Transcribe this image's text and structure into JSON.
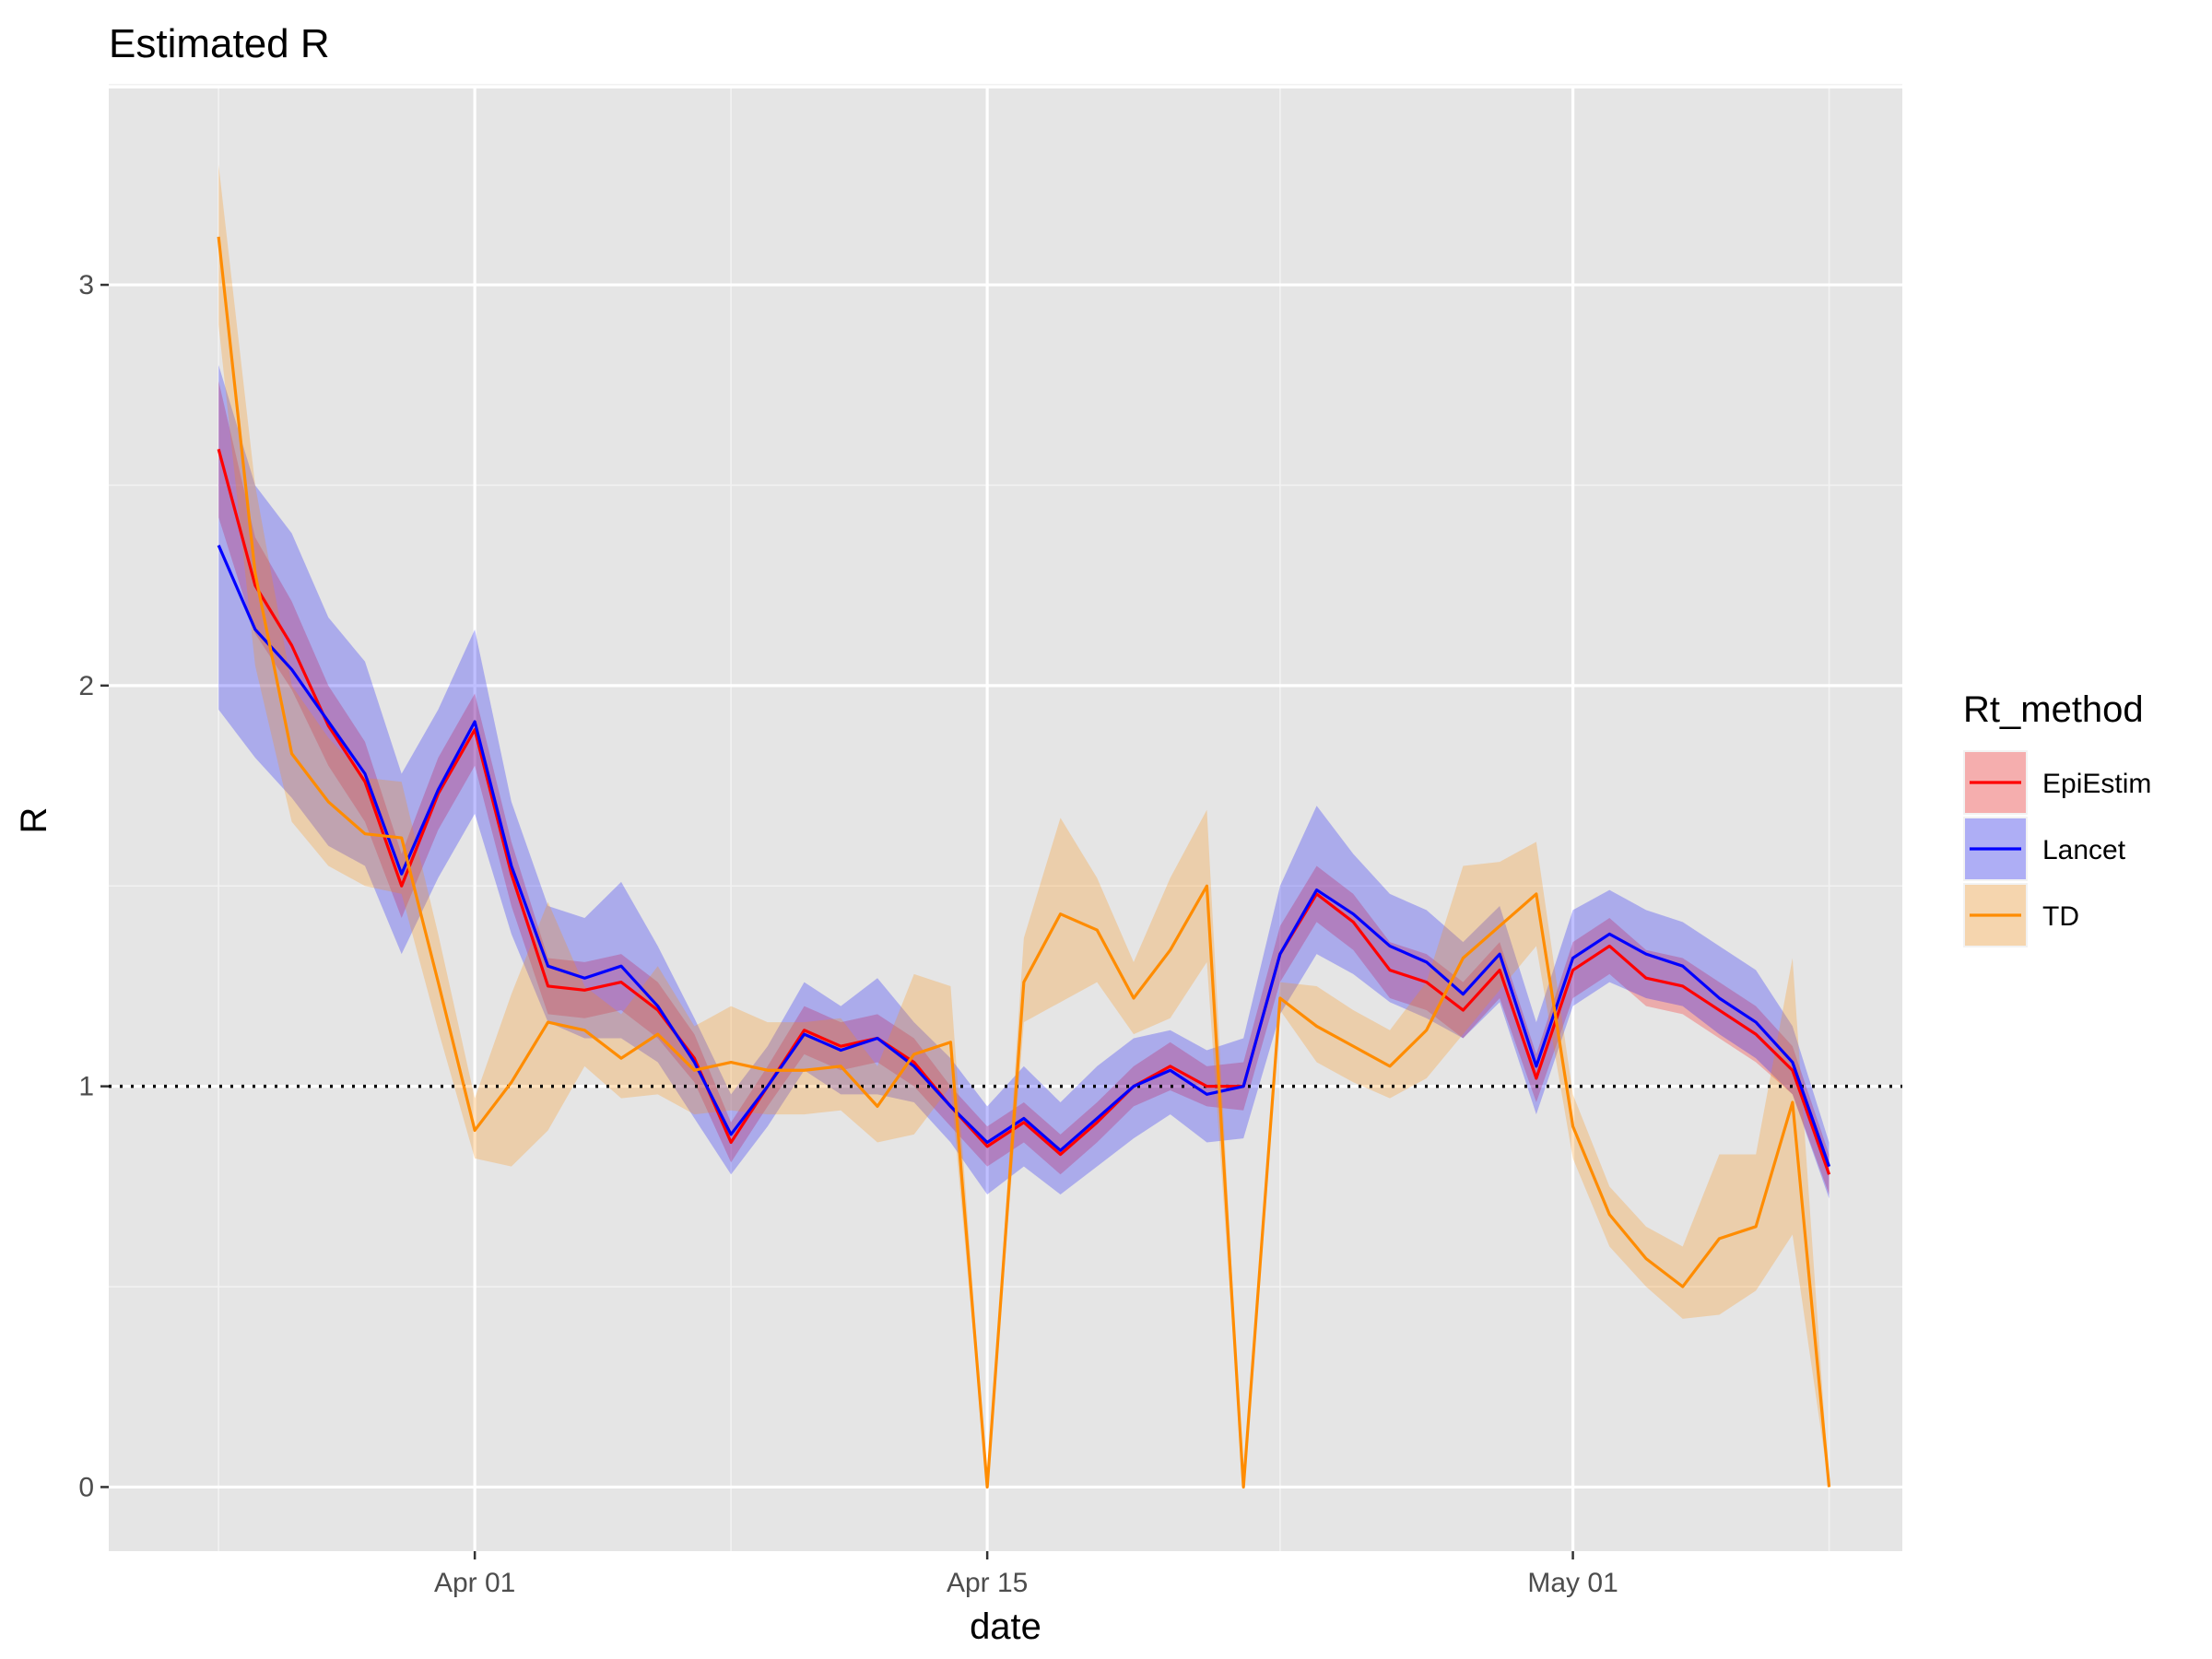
{
  "chart_data": {
    "type": "line",
    "title": "Estimated R",
    "xlabel": "date",
    "ylabel": "R",
    "x_tick_labels": [
      "Apr 01",
      "Apr 15",
      "May 01"
    ],
    "y_tick_labels": [
      "0",
      "1",
      "2",
      "3"
    ],
    "xlim": [
      "2020-03-22",
      "2020-05-10"
    ],
    "ylim": [
      -0.16,
      3.49
    ],
    "reference_line": {
      "y": 1,
      "style": "dotted"
    },
    "grid": true,
    "legend": {
      "title": "Rt_method",
      "position": "right"
    },
    "x": [
      "2020-03-25",
      "2020-03-26",
      "2020-03-27",
      "2020-03-28",
      "2020-03-29",
      "2020-03-30",
      "2020-03-31",
      "2020-04-01",
      "2020-04-02",
      "2020-04-03",
      "2020-04-04",
      "2020-04-05",
      "2020-04-06",
      "2020-04-07",
      "2020-04-08",
      "2020-04-09",
      "2020-04-10",
      "2020-04-11",
      "2020-04-12",
      "2020-04-13",
      "2020-04-14",
      "2020-04-15",
      "2020-04-16",
      "2020-04-17",
      "2020-04-18",
      "2020-04-19",
      "2020-04-20",
      "2020-04-21",
      "2020-04-22",
      "2020-04-23",
      "2020-04-24",
      "2020-04-25",
      "2020-04-26",
      "2020-04-27",
      "2020-04-28",
      "2020-04-29",
      "2020-04-30",
      "2020-05-01",
      "2020-05-02",
      "2020-05-03",
      "2020-05-04",
      "2020-05-05",
      "2020-05-06",
      "2020-05-07",
      "2020-05-08"
    ],
    "series": [
      {
        "name": "EpiEstim",
        "color": "#ff0000",
        "values": [
          2.59,
          2.25,
          2.1,
          1.9,
          1.76,
          1.5,
          1.73,
          1.89,
          1.53,
          1.25,
          1.24,
          1.26,
          1.19,
          1.07,
          0.86,
          1.0,
          1.14,
          1.1,
          1.12,
          1.06,
          0.95,
          0.85,
          0.91,
          0.83,
          0.91,
          1.0,
          1.05,
          1.0,
          1.0,
          1.33,
          1.48,
          1.41,
          1.29,
          1.26,
          1.19,
          1.29,
          1.02,
          1.29,
          1.35,
          1.27,
          1.25,
          1.19,
          1.13,
          1.04,
          0.78
        ],
        "lower": [
          2.42,
          2.13,
          1.99,
          1.8,
          1.66,
          1.42,
          1.64,
          1.8,
          1.45,
          1.18,
          1.17,
          1.19,
          1.12,
          1.01,
          0.81,
          0.95,
          1.08,
          1.04,
          1.06,
          1.0,
          0.9,
          0.8,
          0.86,
          0.78,
          0.86,
          0.95,
          0.99,
          0.95,
          0.94,
          1.26,
          1.41,
          1.34,
          1.22,
          1.19,
          1.12,
          1.22,
          0.96,
          1.22,
          1.28,
          1.2,
          1.18,
          1.12,
          1.06,
          0.98,
          0.73
        ],
        "upper": [
          2.76,
          2.37,
          2.21,
          2.0,
          1.86,
          1.58,
          1.82,
          1.98,
          1.61,
          1.32,
          1.31,
          1.33,
          1.26,
          1.13,
          0.91,
          1.05,
          1.2,
          1.16,
          1.18,
          1.12,
          1.0,
          0.9,
          0.96,
          0.88,
          0.96,
          1.05,
          1.11,
          1.05,
          1.06,
          1.4,
          1.55,
          1.48,
          1.36,
          1.33,
          1.26,
          1.36,
          1.08,
          1.36,
          1.42,
          1.34,
          1.32,
          1.26,
          1.2,
          1.1,
          0.83
        ]
      },
      {
        "name": "Lancet",
        "color": "#0000ff",
        "values": [
          2.35,
          2.14,
          2.04,
          1.91,
          1.78,
          1.53,
          1.74,
          1.91,
          1.55,
          1.3,
          1.27,
          1.3,
          1.2,
          1.06,
          0.88,
          1.0,
          1.13,
          1.09,
          1.12,
          1.05,
          0.95,
          0.86,
          0.92,
          0.84,
          0.92,
          1.0,
          1.04,
          0.98,
          1.0,
          1.33,
          1.49,
          1.43,
          1.35,
          1.31,
          1.23,
          1.33,
          1.05,
          1.32,
          1.38,
          1.33,
          1.3,
          1.22,
          1.16,
          1.06,
          0.8
        ],
        "lower": [
          1.94,
          1.82,
          1.72,
          1.6,
          1.55,
          1.33,
          1.52,
          1.68,
          1.38,
          1.16,
          1.12,
          1.12,
          1.06,
          0.92,
          0.78,
          0.9,
          1.04,
          0.98,
          0.98,
          0.96,
          0.86,
          0.73,
          0.8,
          0.73,
          0.8,
          0.87,
          0.93,
          0.86,
          0.87,
          1.18,
          1.33,
          1.28,
          1.21,
          1.17,
          1.12,
          1.21,
          0.93,
          1.2,
          1.26,
          1.22,
          1.2,
          1.13,
          1.07,
          0.98,
          0.72
        ],
        "upper": [
          2.8,
          2.5,
          2.38,
          2.17,
          2.06,
          1.78,
          1.94,
          2.14,
          1.71,
          1.45,
          1.42,
          1.51,
          1.35,
          1.17,
          0.98,
          1.1,
          1.26,
          1.2,
          1.27,
          1.16,
          1.07,
          0.95,
          1.05,
          0.96,
          1.05,
          1.12,
          1.14,
          1.09,
          1.12,
          1.5,
          1.7,
          1.58,
          1.48,
          1.44,
          1.36,
          1.45,
          1.16,
          1.44,
          1.49,
          1.44,
          1.41,
          1.35,
          1.29,
          1.15,
          0.86
        ]
      },
      {
        "name": "TD",
        "color": "#ff8c00",
        "values": [
          3.12,
          2.28,
          1.83,
          1.71,
          1.63,
          1.62,
          1.26,
          0.89,
          1.01,
          1.16,
          1.14,
          1.07,
          1.13,
          1.04,
          1.06,
          1.04,
          1.04,
          1.05,
          0.95,
          1.08,
          1.11,
          0.0,
          1.26,
          1.43,
          1.39,
          1.22,
          1.34,
          1.5,
          0.0,
          1.22,
          1.15,
          1.1,
          1.05,
          1.14,
          1.32,
          1.4,
          1.48,
          0.9,
          0.68,
          0.57,
          0.5,
          0.62,
          0.65,
          0.96,
          0.0
        ],
        "lower": [
          2.9,
          2.05,
          1.66,
          1.55,
          1.5,
          1.48,
          1.14,
          0.82,
          0.8,
          0.89,
          1.05,
          0.97,
          0.98,
          0.93,
          0.94,
          0.93,
          0.93,
          0.94,
          0.86,
          0.88,
          1.0,
          0.0,
          1.16,
          1.21,
          1.26,
          1.13,
          1.17,
          1.31,
          0.0,
          1.19,
          1.06,
          1.01,
          0.97,
          1.02,
          1.13,
          1.24,
          1.35,
          0.82,
          0.6,
          0.5,
          0.42,
          0.43,
          0.49,
          0.63,
          0.0
        ],
        "upper": [
          3.3,
          2.5,
          2.0,
          1.87,
          1.77,
          1.76,
          1.38,
          0.97,
          1.23,
          1.46,
          1.25,
          1.18,
          1.3,
          1.15,
          1.2,
          1.16,
          1.16,
          1.17,
          1.05,
          1.28,
          1.25,
          0.0,
          1.37,
          1.67,
          1.52,
          1.31,
          1.52,
          1.69,
          0.0,
          1.26,
          1.25,
          1.19,
          1.14,
          1.26,
          1.55,
          1.56,
          1.61,
          0.98,
          0.75,
          0.65,
          0.6,
          0.83,
          0.83,
          1.32,
          0.0
        ]
      }
    ]
  }
}
